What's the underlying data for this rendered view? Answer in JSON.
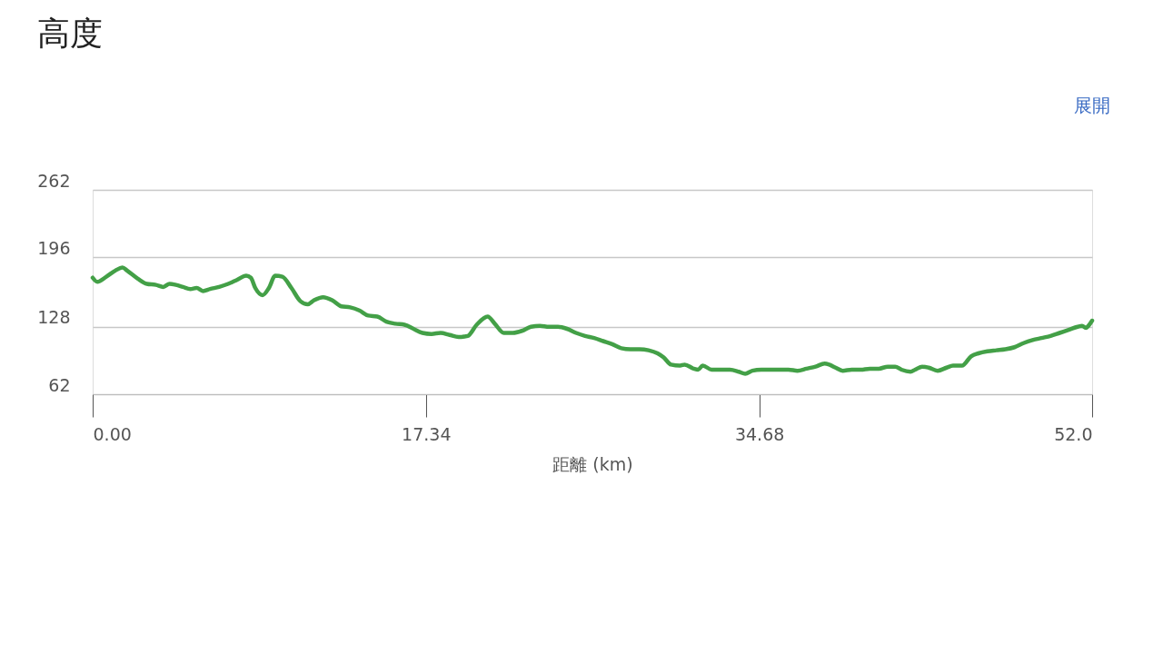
{
  "chart_data": {
    "type": "line",
    "title": "高度",
    "xlabel": "距離 (km)",
    "annotations": [
      "展開"
    ],
    "xlim": [
      0,
      52
    ],
    "ylim": [
      62,
      262
    ],
    "xticks": [
      {
        "value": 0,
        "label": "0.00"
      },
      17.34,
      34.68,
      {
        "value": 52,
        "label": "52.0"
      }
    ],
    "yticks": [
      62,
      128,
      196,
      262
    ],
    "grid": "y",
    "series": [
      {
        "color": "#43a047",
        "x": [
          0.0,
          0.24,
          0.71,
          1.18,
          1.55,
          1.79,
          2.35,
          2.82,
          3.29,
          3.67,
          4.0,
          4.33,
          4.7,
          5.08,
          5.41,
          5.74,
          6.11,
          6.58,
          7.05,
          7.52,
          7.99,
          8.23,
          8.46,
          8.84,
          9.17,
          9.5,
          9.87,
          10.34,
          10.81,
          11.19,
          11.52,
          11.99,
          12.46,
          12.93,
          13.4,
          13.87,
          14.34,
          14.81,
          15.28,
          15.75,
          16.22,
          16.69,
          17.16,
          17.63,
          18.1,
          18.57,
          19.04,
          19.51,
          19.98,
          20.55,
          20.92,
          21.39,
          21.86,
          22.33,
          22.8,
          23.27,
          23.74,
          24.21,
          24.68,
          25.15,
          25.62,
          26.09,
          26.56,
          27.03,
          27.5,
          27.98,
          28.45,
          28.92,
          29.39,
          29.71,
          30.09,
          30.56,
          30.8,
          31.27,
          31.5,
          31.74,
          32.21,
          32.68,
          33.15,
          33.62,
          33.95,
          34.32,
          34.79,
          35.26,
          35.73,
          36.2,
          36.67,
          37.14,
          37.61,
          38.08,
          38.32,
          38.65,
          39.02,
          39.49,
          39.96,
          40.43,
          40.9,
          41.37,
          41.75,
          42.08,
          42.55,
          42.79,
          43.16,
          43.49,
          43.96,
          44.43,
          44.76,
          45.23,
          45.7,
          46.08,
          46.55,
          47.02,
          47.49,
          47.96,
          48.43,
          48.9,
          49.37,
          49.84,
          50.31,
          50.78,
          51.25,
          51.48,
          51.67,
          51.81,
          52.0
        ],
        "values": [
          176,
          172,
          177,
          183,
          186,
          183,
          175,
          170,
          169,
          167,
          170,
          169,
          167,
          165,
          166,
          163,
          165,
          167,
          170,
          174,
          178,
          176,
          166,
          159,
          166,
          178,
          177,
          166,
          153,
          150,
          154,
          157,
          154,
          148,
          147,
          144,
          139,
          138,
          133,
          131,
          130,
          126,
          122,
          121,
          122,
          120,
          118,
          119,
          130,
          138,
          131,
          122,
          122,
          124,
          128,
          129,
          128,
          128,
          126,
          122,
          119,
          117,
          114,
          111,
          107,
          106,
          106,
          105,
          102,
          98,
          91,
          90,
          91,
          87,
          86,
          90,
          86,
          86,
          86,
          84,
          82,
          85,
          86,
          86,
          86,
          86,
          85,
          87,
          89,
          92,
          91,
          88,
          85,
          86,
          86,
          87,
          87,
          89,
          89,
          86,
          84,
          86,
          89,
          88,
          85,
          88,
          90,
          90,
          99,
          102,
          104,
          105,
          106,
          108,
          112,
          115,
          117,
          119,
          122,
          125,
          128,
          129,
          127,
          129,
          134
        ]
      }
    ]
  }
}
